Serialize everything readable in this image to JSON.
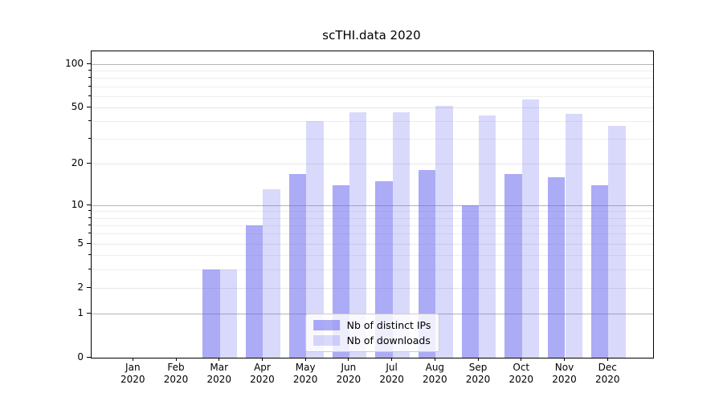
{
  "figure": {
    "title": "scTHI.data 2020"
  },
  "chart_data": {
    "type": "bar",
    "title": "scTHI.data 2020",
    "xlabel": "",
    "ylabel": "",
    "yscale": "symlog (log(1+x))",
    "grid": true,
    "categories": [
      "Jan 2020",
      "Feb 2020",
      "Mar 2020",
      "Apr 2020",
      "May 2020",
      "Jun 2020",
      "Jul 2020",
      "Aug 2020",
      "Sep 2020",
      "Oct 2020",
      "Nov 2020",
      "Dec 2020"
    ],
    "series": [
      {
        "name": "Nb of distinct IPs",
        "color": "#6666ee",
        "alpha": 0.55,
        "values": [
          0,
          0,
          3,
          7,
          17,
          14,
          15,
          18,
          10,
          17,
          16,
          14
        ]
      },
      {
        "name": "Nb of downloads",
        "color": "#6666ee",
        "alpha": 0.25,
        "values": [
          0,
          0,
          3,
          13,
          40,
          46,
          46,
          51,
          44,
          57,
          45,
          37
        ]
      }
    ],
    "yticks": [
      0,
      1,
      2,
      5,
      10,
      20,
      50,
      100
    ],
    "yticks_decade": [
      1,
      10,
      100
    ],
    "yticks_minor": [
      3,
      4,
      6,
      7,
      8,
      9,
      30,
      40,
      60,
      70,
      80,
      90
    ],
    "ylim": [
      0,
      120
    ],
    "legend": {
      "position": "lower center",
      "items": [
        "Nb of distinct IPs",
        "Nb of downloads"
      ]
    }
  },
  "colors": {
    "bar_base": "#6666ee",
    "grid_decade": "#b3b3b3",
    "grid_major_light": "#e6e6e6",
    "grid_minor": "#eeeeee",
    "axis": "#000000",
    "legend_border": "#cccccc",
    "background": "#ffffff"
  }
}
